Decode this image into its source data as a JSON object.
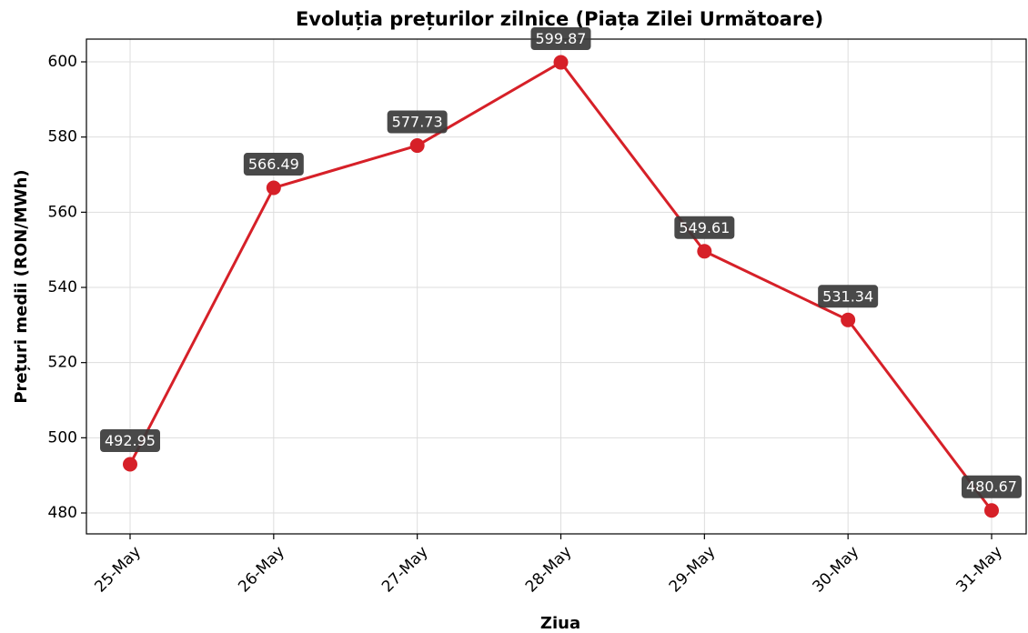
{
  "chart_data": {
    "type": "line",
    "title": "Evoluția prețurilor zilnice (Piața Zilei Următoare)",
    "x_label": "Ziua",
    "y_label": "Prețuri medii (RON/MWh)",
    "categories": [
      "25-May",
      "26-May",
      "27-May",
      "28-May",
      "29-May",
      "30-May",
      "31-May"
    ],
    "series": [
      {
        "name": "Prețuri medii",
        "color": "#d62028",
        "values": [
          492.95,
          566.49,
          577.73,
          599.87,
          549.61,
          531.34,
          480.67
        ]
      }
    ],
    "ylim": [
      474.44,
      606.05
    ],
    "yticks": [
      480,
      500,
      520,
      540,
      560,
      580,
      600
    ],
    "grid": true
  }
}
